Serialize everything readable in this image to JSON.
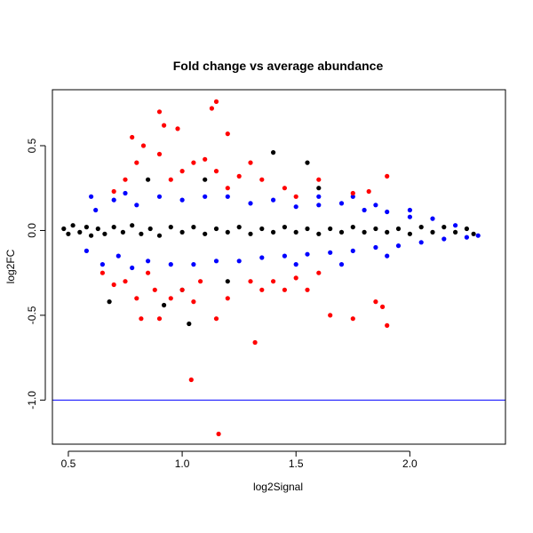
{
  "chart_data": {
    "type": "scatter",
    "title": "Fold change vs average abundance",
    "xlabel": "log2Signal",
    "ylabel": "log2FC",
    "xlim": [
      0.43,
      2.42
    ],
    "ylim": [
      -1.26,
      0.83
    ],
    "xticks": [
      "0.5",
      "1.0",
      "1.5",
      "2.0"
    ],
    "yticks": [
      "-1.0",
      "-0.5",
      "0.0",
      "0.5"
    ],
    "grid": false,
    "legend": "none",
    "hline": {
      "y": -1.0,
      "color": "#0000ff"
    },
    "colors": {
      "black": "#000000",
      "blue": "#0000ff",
      "red": "#ff0000"
    },
    "series": [
      {
        "color": "black",
        "points": [
          [
            0.48,
            0.01
          ],
          [
            0.5,
            -0.02
          ],
          [
            0.52,
            0.03
          ],
          [
            0.55,
            -0.01
          ],
          [
            0.58,
            0.02
          ],
          [
            0.6,
            -0.03
          ],
          [
            0.63,
            0.01
          ],
          [
            0.66,
            -0.02
          ],
          [
            0.7,
            0.02
          ],
          [
            0.74,
            -0.01
          ],
          [
            0.78,
            0.03
          ],
          [
            0.82,
            -0.02
          ],
          [
            0.86,
            0.01
          ],
          [
            0.9,
            -0.03
          ],
          [
            0.95,
            0.02
          ],
          [
            1.0,
            -0.01
          ],
          [
            1.05,
            0.02
          ],
          [
            1.1,
            -0.02
          ],
          [
            1.15,
            0.01
          ],
          [
            1.2,
            -0.01
          ],
          [
            1.25,
            0.02
          ],
          [
            1.3,
            -0.02
          ],
          [
            1.35,
            0.01
          ],
          [
            1.4,
            -0.01
          ],
          [
            1.45,
            0.02
          ],
          [
            1.5,
            -0.01
          ],
          [
            1.55,
            0.01
          ],
          [
            1.6,
            -0.02
          ],
          [
            1.65,
            0.01
          ],
          [
            1.7,
            -0.01
          ],
          [
            1.75,
            0.02
          ],
          [
            1.8,
            -0.01
          ],
          [
            1.85,
            0.01
          ],
          [
            1.9,
            -0.01
          ],
          [
            1.95,
            0.01
          ],
          [
            2.0,
            -0.02
          ],
          [
            2.05,
            0.02
          ],
          [
            2.1,
            -0.01
          ],
          [
            2.15,
            0.02
          ],
          [
            2.2,
            -0.01
          ],
          [
            2.25,
            0.01
          ],
          [
            2.28,
            -0.02
          ],
          [
            0.68,
            -0.42
          ],
          [
            0.92,
            -0.44
          ],
          [
            1.03,
            -0.55
          ],
          [
            1.4,
            0.46
          ],
          [
            1.55,
            0.4
          ],
          [
            1.1,
            0.3
          ],
          [
            1.0,
            -0.35
          ],
          [
            1.6,
            0.25
          ],
          [
            0.85,
            0.3
          ],
          [
            1.2,
            -0.3
          ]
        ]
      },
      {
        "color": "blue",
        "points": [
          [
            0.6,
            0.2
          ],
          [
            0.62,
            0.12
          ],
          [
            0.58,
            -0.12
          ],
          [
            0.65,
            -0.2
          ],
          [
            0.7,
            0.18
          ],
          [
            0.72,
            -0.15
          ],
          [
            0.75,
            0.22
          ],
          [
            0.78,
            -0.22
          ],
          [
            0.8,
            0.15
          ],
          [
            0.85,
            -0.18
          ],
          [
            0.9,
            0.2
          ],
          [
            0.95,
            -0.2
          ],
          [
            1.0,
            0.18
          ],
          [
            1.05,
            -0.2
          ],
          [
            1.1,
            0.2
          ],
          [
            1.15,
            -0.18
          ],
          [
            1.2,
            0.2
          ],
          [
            1.25,
            -0.18
          ],
          [
            1.3,
            0.16
          ],
          [
            1.35,
            -0.16
          ],
          [
            1.4,
            0.18
          ],
          [
            1.45,
            -0.15
          ],
          [
            1.5,
            0.14
          ],
          [
            1.55,
            -0.14
          ],
          [
            1.6,
            0.15
          ],
          [
            1.65,
            -0.13
          ],
          [
            1.7,
            0.16
          ],
          [
            1.75,
            -0.12
          ],
          [
            1.8,
            0.12
          ],
          [
            1.85,
            -0.1
          ],
          [
            1.9,
            0.11
          ],
          [
            1.95,
            -0.09
          ],
          [
            2.0,
            0.08
          ],
          [
            2.05,
            -0.07
          ],
          [
            2.1,
            0.07
          ],
          [
            2.15,
            -0.05
          ],
          [
            2.2,
            0.03
          ],
          [
            2.25,
            -0.04
          ],
          [
            2.3,
            -0.03
          ],
          [
            1.6,
            0.2
          ],
          [
            1.75,
            0.2
          ],
          [
            1.85,
            0.15
          ],
          [
            1.9,
            -0.15
          ],
          [
            2.0,
            0.12
          ],
          [
            1.7,
            -0.2
          ],
          [
            1.5,
            -0.2
          ]
        ]
      },
      {
        "color": "red",
        "points": [
          [
            0.9,
            0.7
          ],
          [
            1.15,
            0.76
          ],
          [
            1.13,
            0.72
          ],
          [
            0.92,
            0.62
          ],
          [
            0.98,
            0.6
          ],
          [
            1.2,
            0.57
          ],
          [
            0.78,
            0.55
          ],
          [
            0.83,
            0.5
          ],
          [
            0.8,
            0.4
          ],
          [
            0.9,
            0.45
          ],
          [
            1.05,
            0.4
          ],
          [
            1.1,
            0.42
          ],
          [
            1.15,
            0.35
          ],
          [
            1.25,
            0.32
          ],
          [
            1.3,
            0.4
          ],
          [
            1.35,
            0.3
          ],
          [
            1.45,
            0.25
          ],
          [
            1.5,
            0.2
          ],
          [
            1.6,
            0.3
          ],
          [
            1.75,
            0.22
          ],
          [
            1.82,
            0.23
          ],
          [
            1.9,
            0.32
          ],
          [
            0.7,
            0.23
          ],
          [
            0.75,
            0.3
          ],
          [
            0.95,
            0.3
          ],
          [
            1.0,
            0.35
          ],
          [
            1.2,
            0.25
          ],
          [
            0.65,
            -0.25
          ],
          [
            0.7,
            -0.32
          ],
          [
            0.75,
            -0.3
          ],
          [
            0.8,
            -0.4
          ],
          [
            0.82,
            -0.52
          ],
          [
            0.88,
            -0.35
          ],
          [
            0.9,
            -0.52
          ],
          [
            0.95,
            -0.4
          ],
          [
            1.0,
            -0.35
          ],
          [
            1.05,
            -0.42
          ],
          [
            1.15,
            -0.52
          ],
          [
            1.2,
            -0.4
          ],
          [
            1.3,
            -0.3
          ],
          [
            1.35,
            -0.35
          ],
          [
            1.4,
            -0.3
          ],
          [
            1.45,
            -0.35
          ],
          [
            1.5,
            -0.28
          ],
          [
            1.55,
            -0.35
          ],
          [
            1.6,
            -0.25
          ],
          [
            1.65,
            -0.5
          ],
          [
            1.75,
            -0.52
          ],
          [
            1.85,
            -0.42
          ],
          [
            1.88,
            -0.45
          ],
          [
            1.9,
            -0.56
          ],
          [
            1.32,
            -0.66
          ],
          [
            1.04,
            -0.88
          ],
          [
            1.16,
            -1.2
          ],
          [
            1.08,
            -0.3
          ],
          [
            0.85,
            -0.25
          ]
        ]
      }
    ]
  }
}
